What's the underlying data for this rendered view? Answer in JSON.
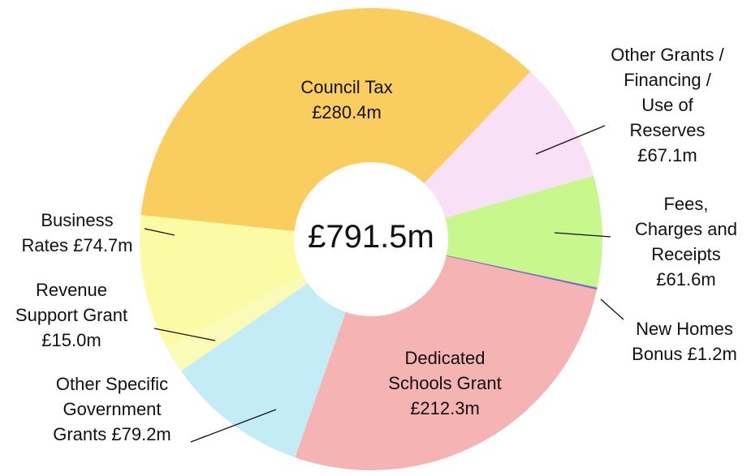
{
  "chart_data": {
    "type": "donut",
    "center_label": "£791.5m",
    "categories": [
      "Council Tax",
      "Other Grants / Financing / Use of Reserves",
      "Fees, Charges and Receipts",
      "New Homes Bonus",
      "Dedicated Schools Grant",
      "Other Specific Government Grants",
      "Revenue Support Grant",
      "Business Rates"
    ],
    "values": [
      280.4,
      67.1,
      61.6,
      1.2,
      212.3,
      79.2,
      15.0,
      74.7
    ],
    "value_labels": [
      "£280.4m",
      "£67.1m",
      "£61.6m",
      "£1.2m",
      "£212.3m",
      "£79.2m",
      "£15.0m",
      "£74.7m"
    ],
    "colors": [
      "#f9cd5e",
      "#f8e0f6",
      "#c8f78d",
      "#7a6ec9",
      "#f6b3b3",
      "#c4ecf6",
      "#fbfbb8",
      "#fbfba6"
    ]
  }
}
